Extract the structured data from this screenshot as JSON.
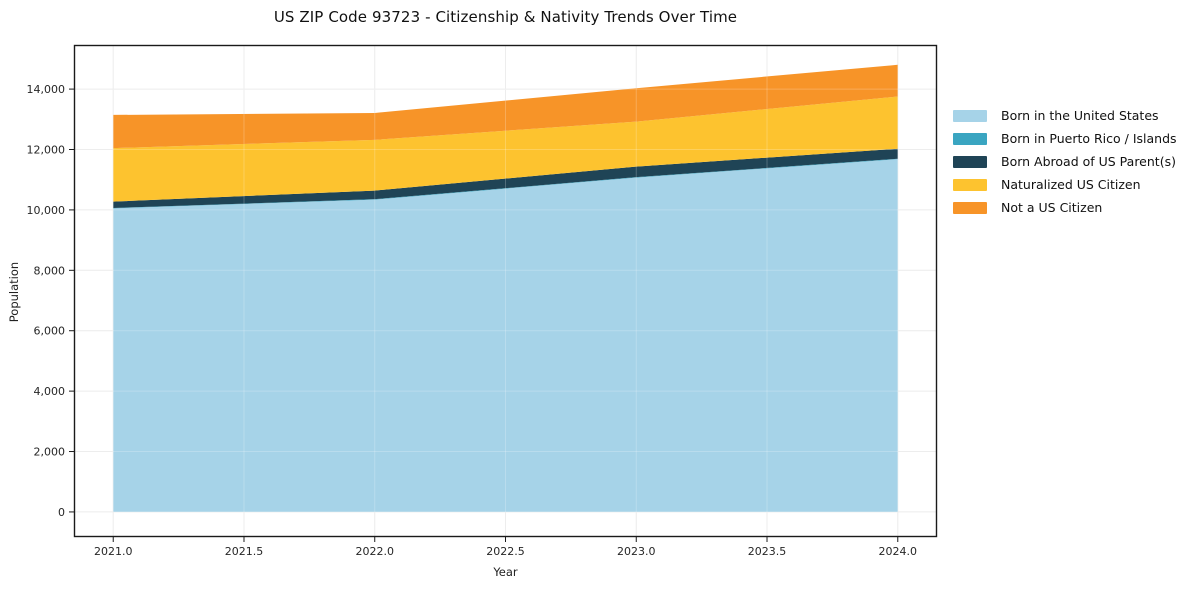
{
  "chart_data": {
    "type": "area",
    "stacked": true,
    "title": "US ZIP Code 93723 - Citizenship & Nativity Trends Over Time",
    "xlabel": "Year",
    "ylabel": "Population",
    "x": [
      2021,
      2022,
      2023,
      2024
    ],
    "series": [
      {
        "name": "Born in the United States",
        "color": "#a6d3e8",
        "values": [
          10050,
          10340,
          11070,
          11680
        ]
      },
      {
        "name": "Born in Puerto Rico / Islands",
        "color": "#3aa5c1",
        "values": [
          15,
          15,
          15,
          15
        ]
      },
      {
        "name": "Born Abroad of US Parent(s)",
        "color": "#1f4456",
        "values": [
          210,
          285,
          350,
          330
        ]
      },
      {
        "name": "Naturalized US Citizen",
        "color": "#fdc32f",
        "values": [
          1770,
          1680,
          1490,
          1730
        ]
      },
      {
        "name": "Not a US Citizen",
        "color": "#f79428",
        "values": [
          1100,
          890,
          1105,
          1050
        ]
      }
    ],
    "totals": [
      13145,
      13210,
      14030,
      14805
    ],
    "xlim": [
      2020.85,
      2024.15
    ],
    "ylim": [
      -830,
      15460
    ],
    "xticks": [
      2021.0,
      2021.5,
      2022.0,
      2022.5,
      2023.0,
      2023.5,
      2024.0
    ],
    "xtick_labels": [
      "2021.0",
      "2021.5",
      "2022.0",
      "2022.5",
      "2023.0",
      "2023.5",
      "2024.0"
    ],
    "yticks": [
      0,
      2000,
      4000,
      6000,
      8000,
      10000,
      12000,
      14000
    ],
    "ytick_labels": [
      "0",
      "2,000",
      "4,000",
      "6,000",
      "8,000",
      "10,000",
      "12,000",
      "14,000"
    ],
    "grid": true,
    "legend_position": "outside-right",
    "colors": {
      "grid": "#e8e8e8",
      "spine": "#1a1a1a",
      "background": "#ffffff"
    }
  }
}
